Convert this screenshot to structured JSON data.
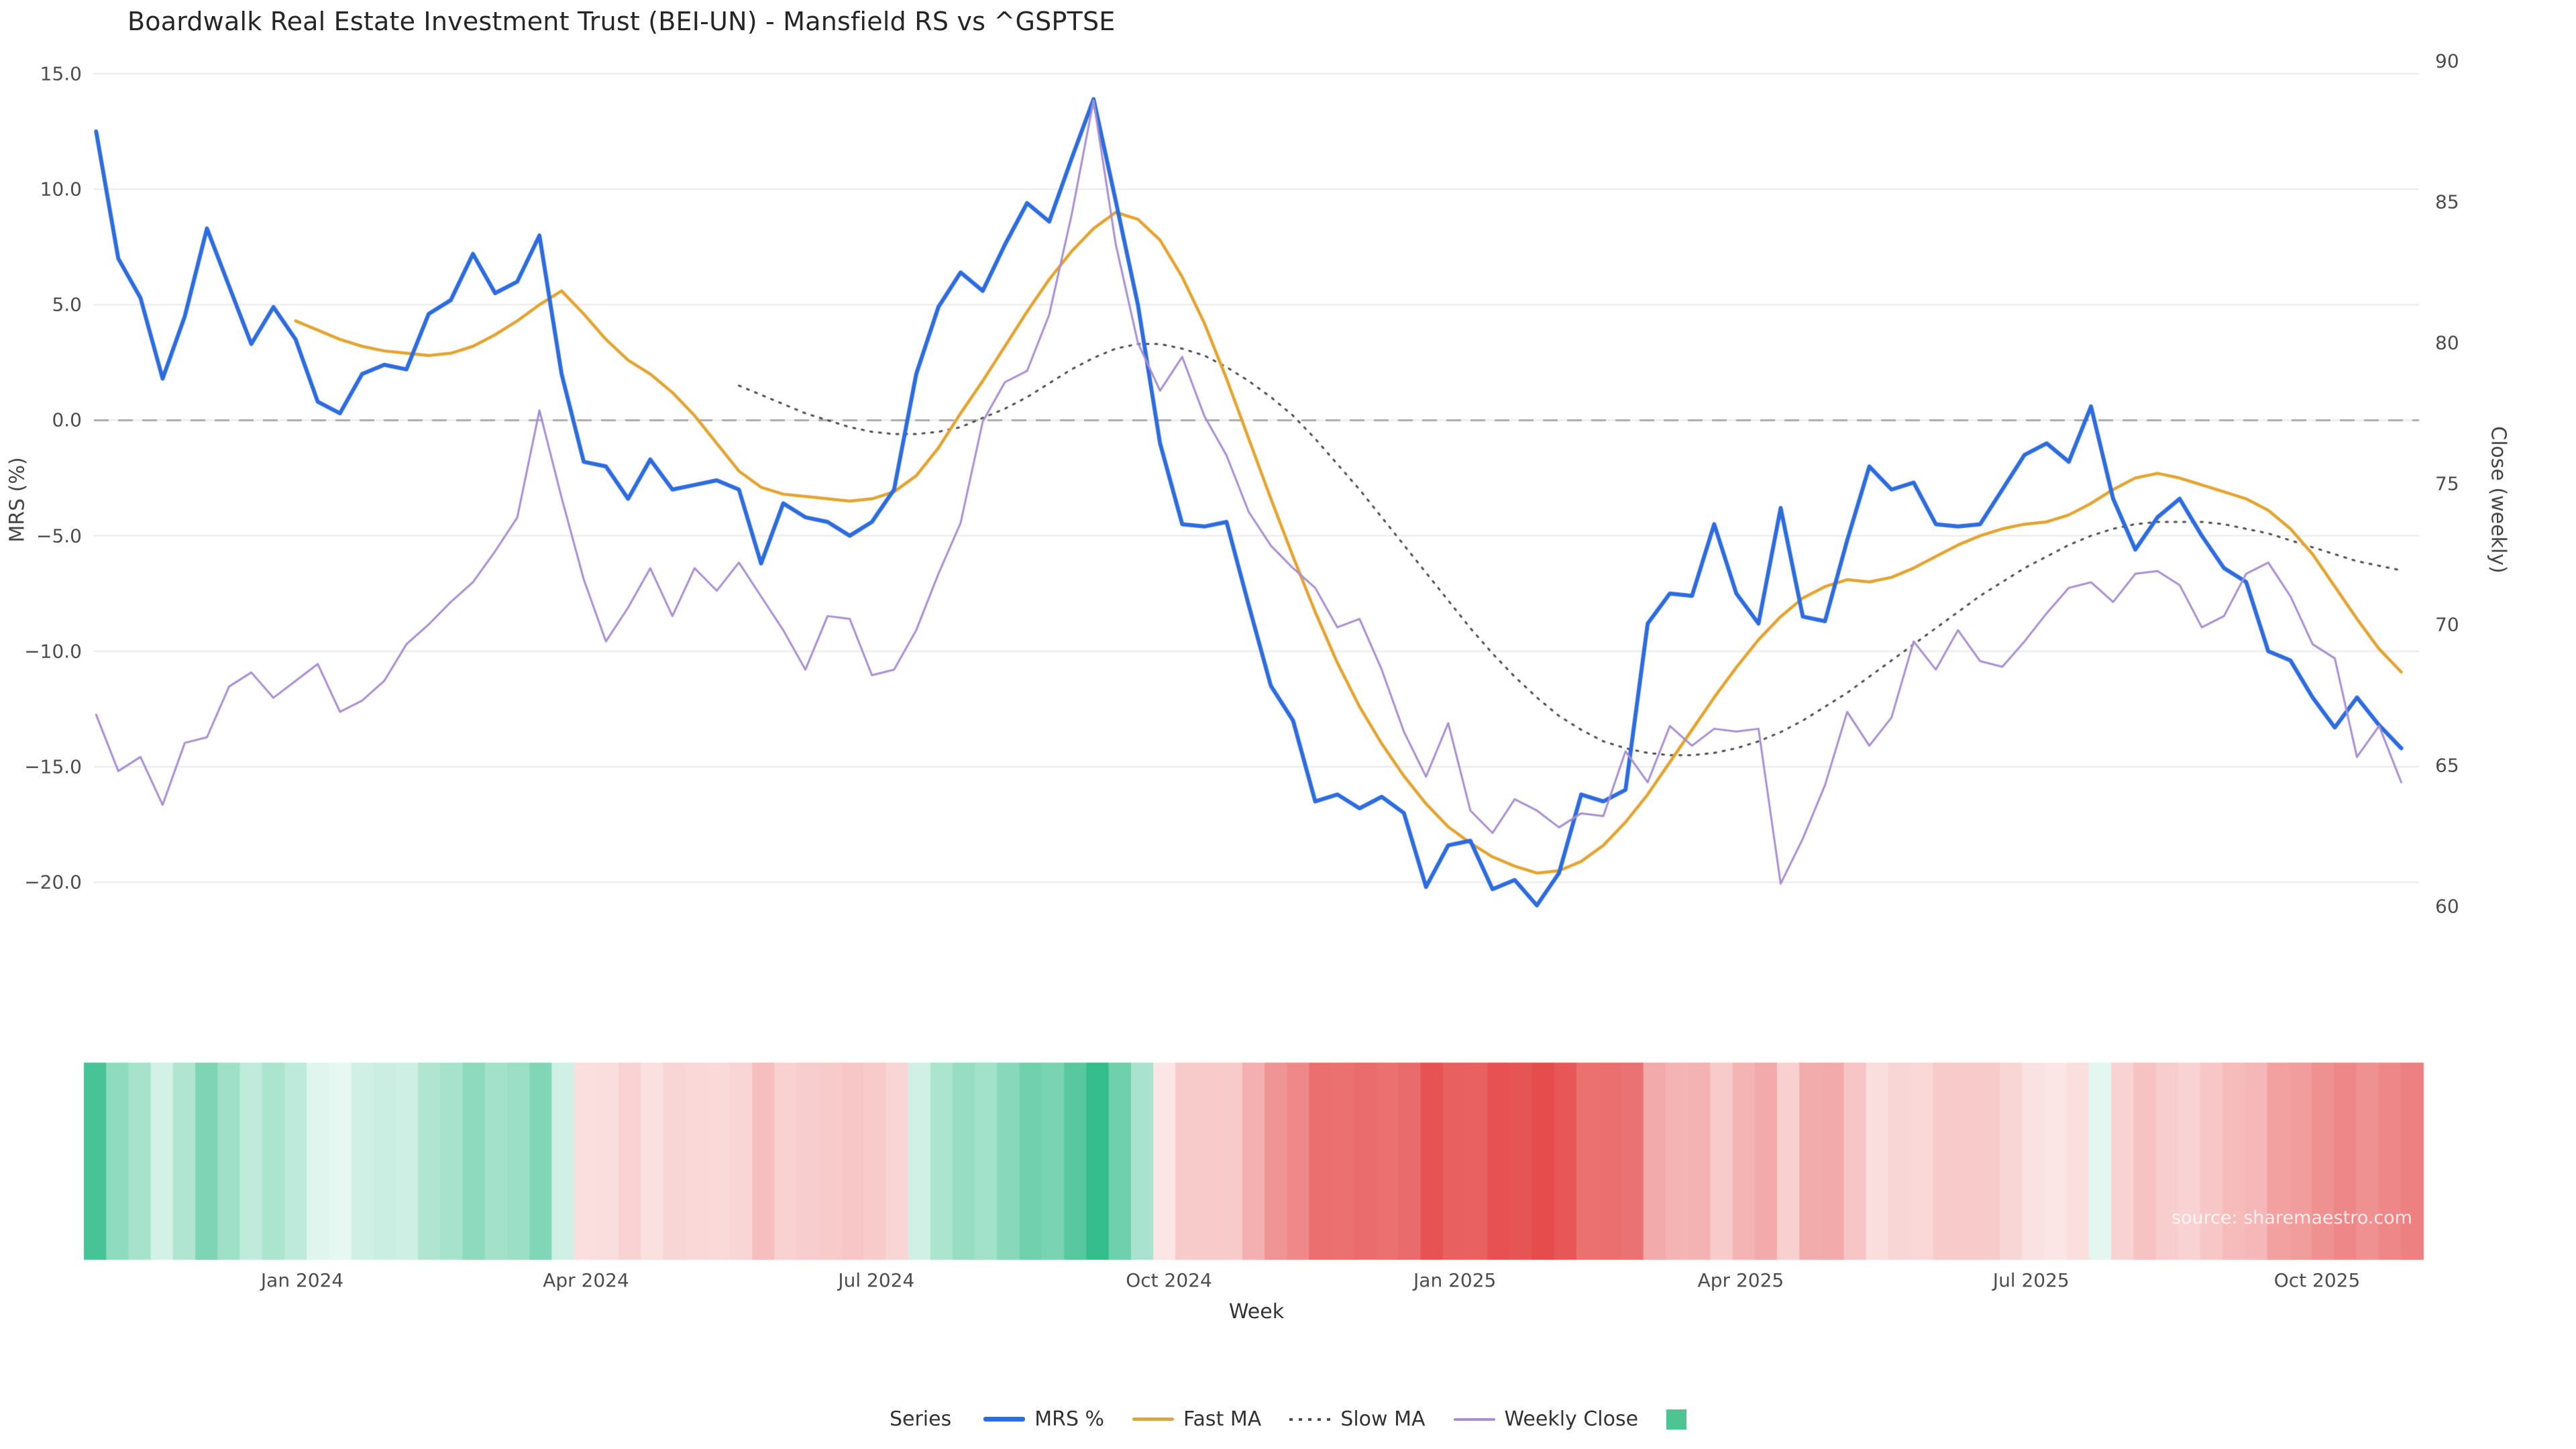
{
  "chart_data": {
    "type": "line",
    "title": "Boardwalk Real Estate Investment Trust (BEI-UN) - Mansfield RS vs ^GSPTSE",
    "xlabel": "Week",
    "ylabel_left": "MRS (%)",
    "ylabel_right": "Close (weekly)",
    "source_text": "source: sharemaestro.com",
    "x_unit": "weekly index (Nov 2023 - Nov 2025)",
    "xlim": [
      -0.1,
      104.8
    ],
    "ylim_left": [
      -21.65,
      16.1
    ],
    "ylim_right": [
      59.5,
      90.45
    ],
    "grid": "horizontal-only",
    "x_ticks": [
      {
        "pos": 9.3,
        "label": "Jan 2024"
      },
      {
        "pos": 22.1,
        "label": "Apr 2024"
      },
      {
        "pos": 35.2,
        "label": "Jul 2024"
      },
      {
        "pos": 48.4,
        "label": "Oct 2024"
      },
      {
        "pos": 61.3,
        "label": "Jan 2025"
      },
      {
        "pos": 74.2,
        "label": "Apr 2025"
      },
      {
        "pos": 87.3,
        "label": "Jul 2025"
      },
      {
        "pos": 100.2,
        "label": "Oct 2025"
      }
    ],
    "y_left_ticks": [
      {
        "v": 15,
        "label": "15.0"
      },
      {
        "v": 10,
        "label": "10.0"
      },
      {
        "v": 5,
        "label": "5.0"
      },
      {
        "v": 0,
        "label": "0.0"
      },
      {
        "v": -5,
        "label": "−5.0"
      },
      {
        "v": -10,
        "label": "−10.0"
      },
      {
        "v": -15,
        "label": "−15.0"
      },
      {
        "v": -20,
        "label": "−20.0"
      }
    ],
    "y_right_ticks": [
      {
        "v": 90,
        "label": "90"
      },
      {
        "v": 85,
        "label": "85"
      },
      {
        "v": 80,
        "label": "80"
      },
      {
        "v": 75,
        "label": "75"
      },
      {
        "v": 70,
        "label": "70"
      },
      {
        "v": 65,
        "label": "65"
      },
      {
        "v": 60,
        "label": "60"
      }
    ],
    "zero_line": {
      "value": 0,
      "color": "#ababab",
      "style": "dashed"
    },
    "series": [
      {
        "name": "MRS %",
        "axis": "left",
        "color": "#2d6cdf",
        "style": "solid",
        "width": 6,
        "values": [
          12.5,
          7.0,
          5.3,
          1.8,
          4.5,
          8.3,
          5.8,
          3.3,
          4.9,
          3.5,
          0.8,
          0.3,
          2.0,
          2.4,
          2.2,
          4.6,
          5.2,
          7.2,
          5.5,
          6.0,
          8.0,
          2.0,
          -1.8,
          -2.0,
          -3.4,
          -1.7,
          -3.0,
          -2.8,
          -2.6,
          -3.0,
          -6.2,
          -3.6,
          -4.2,
          -4.4,
          -5.0,
          -4.4,
          -3.0,
          2.0,
          4.9,
          6.4,
          5.6,
          7.6,
          9.4,
          8.6,
          11.3,
          13.9,
          9.5,
          5.0,
          -1.0,
          -4.5,
          -4.6,
          -4.4,
          -8.0,
          -11.5,
          -13.0,
          -16.5,
          -16.2,
          -16.8,
          -16.3,
          -17.0,
          -20.2,
          -18.4,
          -18.2,
          -20.3,
          -19.9,
          -21.0,
          -19.6,
          -16.2,
          -16.5,
          -16.0,
          -8.8,
          -7.5,
          -7.6,
          -4.5,
          -7.5,
          -8.8,
          -3.8,
          -8.5,
          -8.7,
          -5.2,
          -2.0,
          -3.0,
          -2.7,
          -4.5,
          -4.6,
          -4.5,
          -3.0,
          -1.5,
          -1.0,
          -1.8,
          0.6,
          -3.4,
          -5.6,
          -4.2,
          -3.4,
          -5.0,
          -6.4,
          -7.0,
          -10.0,
          -10.4,
          -12.0,
          -13.3,
          -12.0,
          -13.2,
          -14.2
        ]
      },
      {
        "name": "Fast MA",
        "axis": "left",
        "color": "#e3a430",
        "style": "solid",
        "width": 4.5,
        "values": [
          null,
          null,
          null,
          null,
          null,
          null,
          null,
          null,
          null,
          4.3,
          3.9,
          3.5,
          3.2,
          3.0,
          2.9,
          2.8,
          2.9,
          3.2,
          3.7,
          4.3,
          5.0,
          5.6,
          4.6,
          3.5,
          2.6,
          2.0,
          1.2,
          0.2,
          -1.0,
          -2.2,
          -2.9,
          -3.2,
          -3.3,
          -3.4,
          -3.5,
          -3.4,
          -3.1,
          -2.4,
          -1.2,
          0.3,
          1.7,
          3.2,
          4.7,
          6.1,
          7.3,
          8.3,
          9.0,
          8.7,
          7.8,
          6.2,
          4.2,
          1.8,
          -0.8,
          -3.4,
          -5.9,
          -8.3,
          -10.5,
          -12.4,
          -14.0,
          -15.4,
          -16.6,
          -17.6,
          -18.3,
          -18.9,
          -19.3,
          -19.6,
          -19.5,
          -19.1,
          -18.4,
          -17.4,
          -16.2,
          -14.8,
          -13.4,
          -12.0,
          -10.7,
          -9.5,
          -8.5,
          -7.7,
          -7.2,
          -6.9,
          -7.0,
          -6.8,
          -6.4,
          -5.9,
          -5.4,
          -5.0,
          -4.7,
          -4.5,
          -4.4,
          -4.1,
          -3.6,
          -3.0,
          -2.5,
          -2.3,
          -2.5,
          -2.8,
          -3.1,
          -3.4,
          -3.9,
          -4.7,
          -5.8,
          -7.2,
          -8.6,
          -9.9,
          -10.9
        ]
      },
      {
        "name": "Slow MA",
        "axis": "left",
        "color": "#4d4d4d",
        "style": "dotted",
        "width": 3,
        "values": [
          null,
          null,
          null,
          null,
          null,
          null,
          null,
          null,
          null,
          null,
          null,
          null,
          null,
          null,
          null,
          null,
          null,
          null,
          null,
          null,
          null,
          null,
          null,
          null,
          null,
          null,
          null,
          null,
          null,
          1.5,
          1.1,
          0.7,
          0.3,
          0.0,
          -0.3,
          -0.5,
          -0.6,
          -0.6,
          -0.5,
          -0.3,
          0.1,
          0.5,
          1.0,
          1.6,
          2.2,
          2.7,
          3.1,
          3.3,
          3.3,
          3.1,
          2.8,
          2.3,
          1.7,
          1.0,
          0.2,
          -0.8,
          -1.9,
          -3.0,
          -4.2,
          -5.4,
          -6.6,
          -7.8,
          -9.0,
          -10.1,
          -11.1,
          -12.0,
          -12.8,
          -13.4,
          -13.9,
          -14.2,
          -14.4,
          -14.5,
          -14.5,
          -14.4,
          -14.2,
          -13.9,
          -13.5,
          -13.0,
          -12.4,
          -11.8,
          -11.1,
          -10.4,
          -9.7,
          -9.0,
          -8.3,
          -7.6,
          -7.0,
          -6.4,
          -5.9,
          -5.4,
          -5.0,
          -4.7,
          -4.5,
          -4.4,
          -4.4,
          -4.4,
          -4.5,
          -4.7,
          -4.9,
          -5.2,
          -5.5,
          -5.8,
          -6.1,
          -6.3,
          -6.5
        ]
      },
      {
        "name": "Weekly Close",
        "axis": "right",
        "color": "#a88fd2",
        "style": "solid",
        "width": 3,
        "values": [
          66.8,
          64.8,
          65.3,
          63.6,
          65.8,
          66.0,
          67.8,
          68.3,
          67.4,
          68.0,
          68.6,
          66.9,
          67.3,
          68.0,
          69.3,
          70.0,
          70.8,
          71.5,
          72.6,
          73.8,
          77.6,
          74.5,
          71.6,
          69.4,
          70.6,
          72.0,
          70.3,
          72.0,
          71.2,
          72.2,
          71.0,
          69.8,
          68.4,
          70.3,
          70.2,
          68.2,
          68.4,
          69.8,
          71.8,
          73.6,
          77.2,
          78.6,
          79.0,
          81.0,
          84.5,
          88.6,
          83.5,
          80.0,
          78.3,
          79.5,
          77.4,
          76.0,
          74.0,
          72.8,
          72.0,
          71.3,
          69.9,
          70.2,
          68.4,
          66.2,
          64.6,
          66.5,
          63.4,
          62.6,
          63.8,
          63.4,
          62.8,
          63.3,
          63.2,
          65.5,
          64.4,
          66.4,
          65.7,
          66.3,
          66.2,
          66.3,
          60.8,
          62.4,
          64.3,
          66.9,
          65.7,
          66.7,
          69.4,
          68.4,
          69.8,
          68.7,
          68.5,
          69.4,
          70.4,
          71.3,
          71.5,
          70.8,
          71.8,
          71.9,
          71.4,
          69.9,
          70.3,
          71.8,
          72.2,
          71.0,
          69.3,
          68.8,
          65.3,
          66.4,
          64.4
        ]
      }
    ],
    "heatmap": {
      "description": "color strip derived from MRS % sign and magnitude (green positive, red negative)",
      "source_series": "MRS %",
      "positive_color": "#34bd8c",
      "negative_color": "#e64c4c",
      "max_positive": 14,
      "max_negative": 21
    },
    "legend": {
      "title": "Series",
      "items": [
        {
          "label": "MRS %",
          "swatch": "line",
          "color": "#2d6cdf",
          "thickness": 7
        },
        {
          "label": "Fast MA",
          "swatch": "line",
          "color": "#e3a430",
          "thickness": 5
        },
        {
          "label": "Slow MA",
          "swatch": "dotted",
          "color": "#4d4d4d",
          "thickness": 4
        },
        {
          "label": "Weekly Close",
          "swatch": "line",
          "color": "#a88fd2",
          "thickness": 4
        },
        {
          "label": "",
          "swatch": "square",
          "color": "#4ec492"
        }
      ]
    },
    "style": {
      "grid_color": "#e9e9e9",
      "background": "#ffffff"
    }
  }
}
